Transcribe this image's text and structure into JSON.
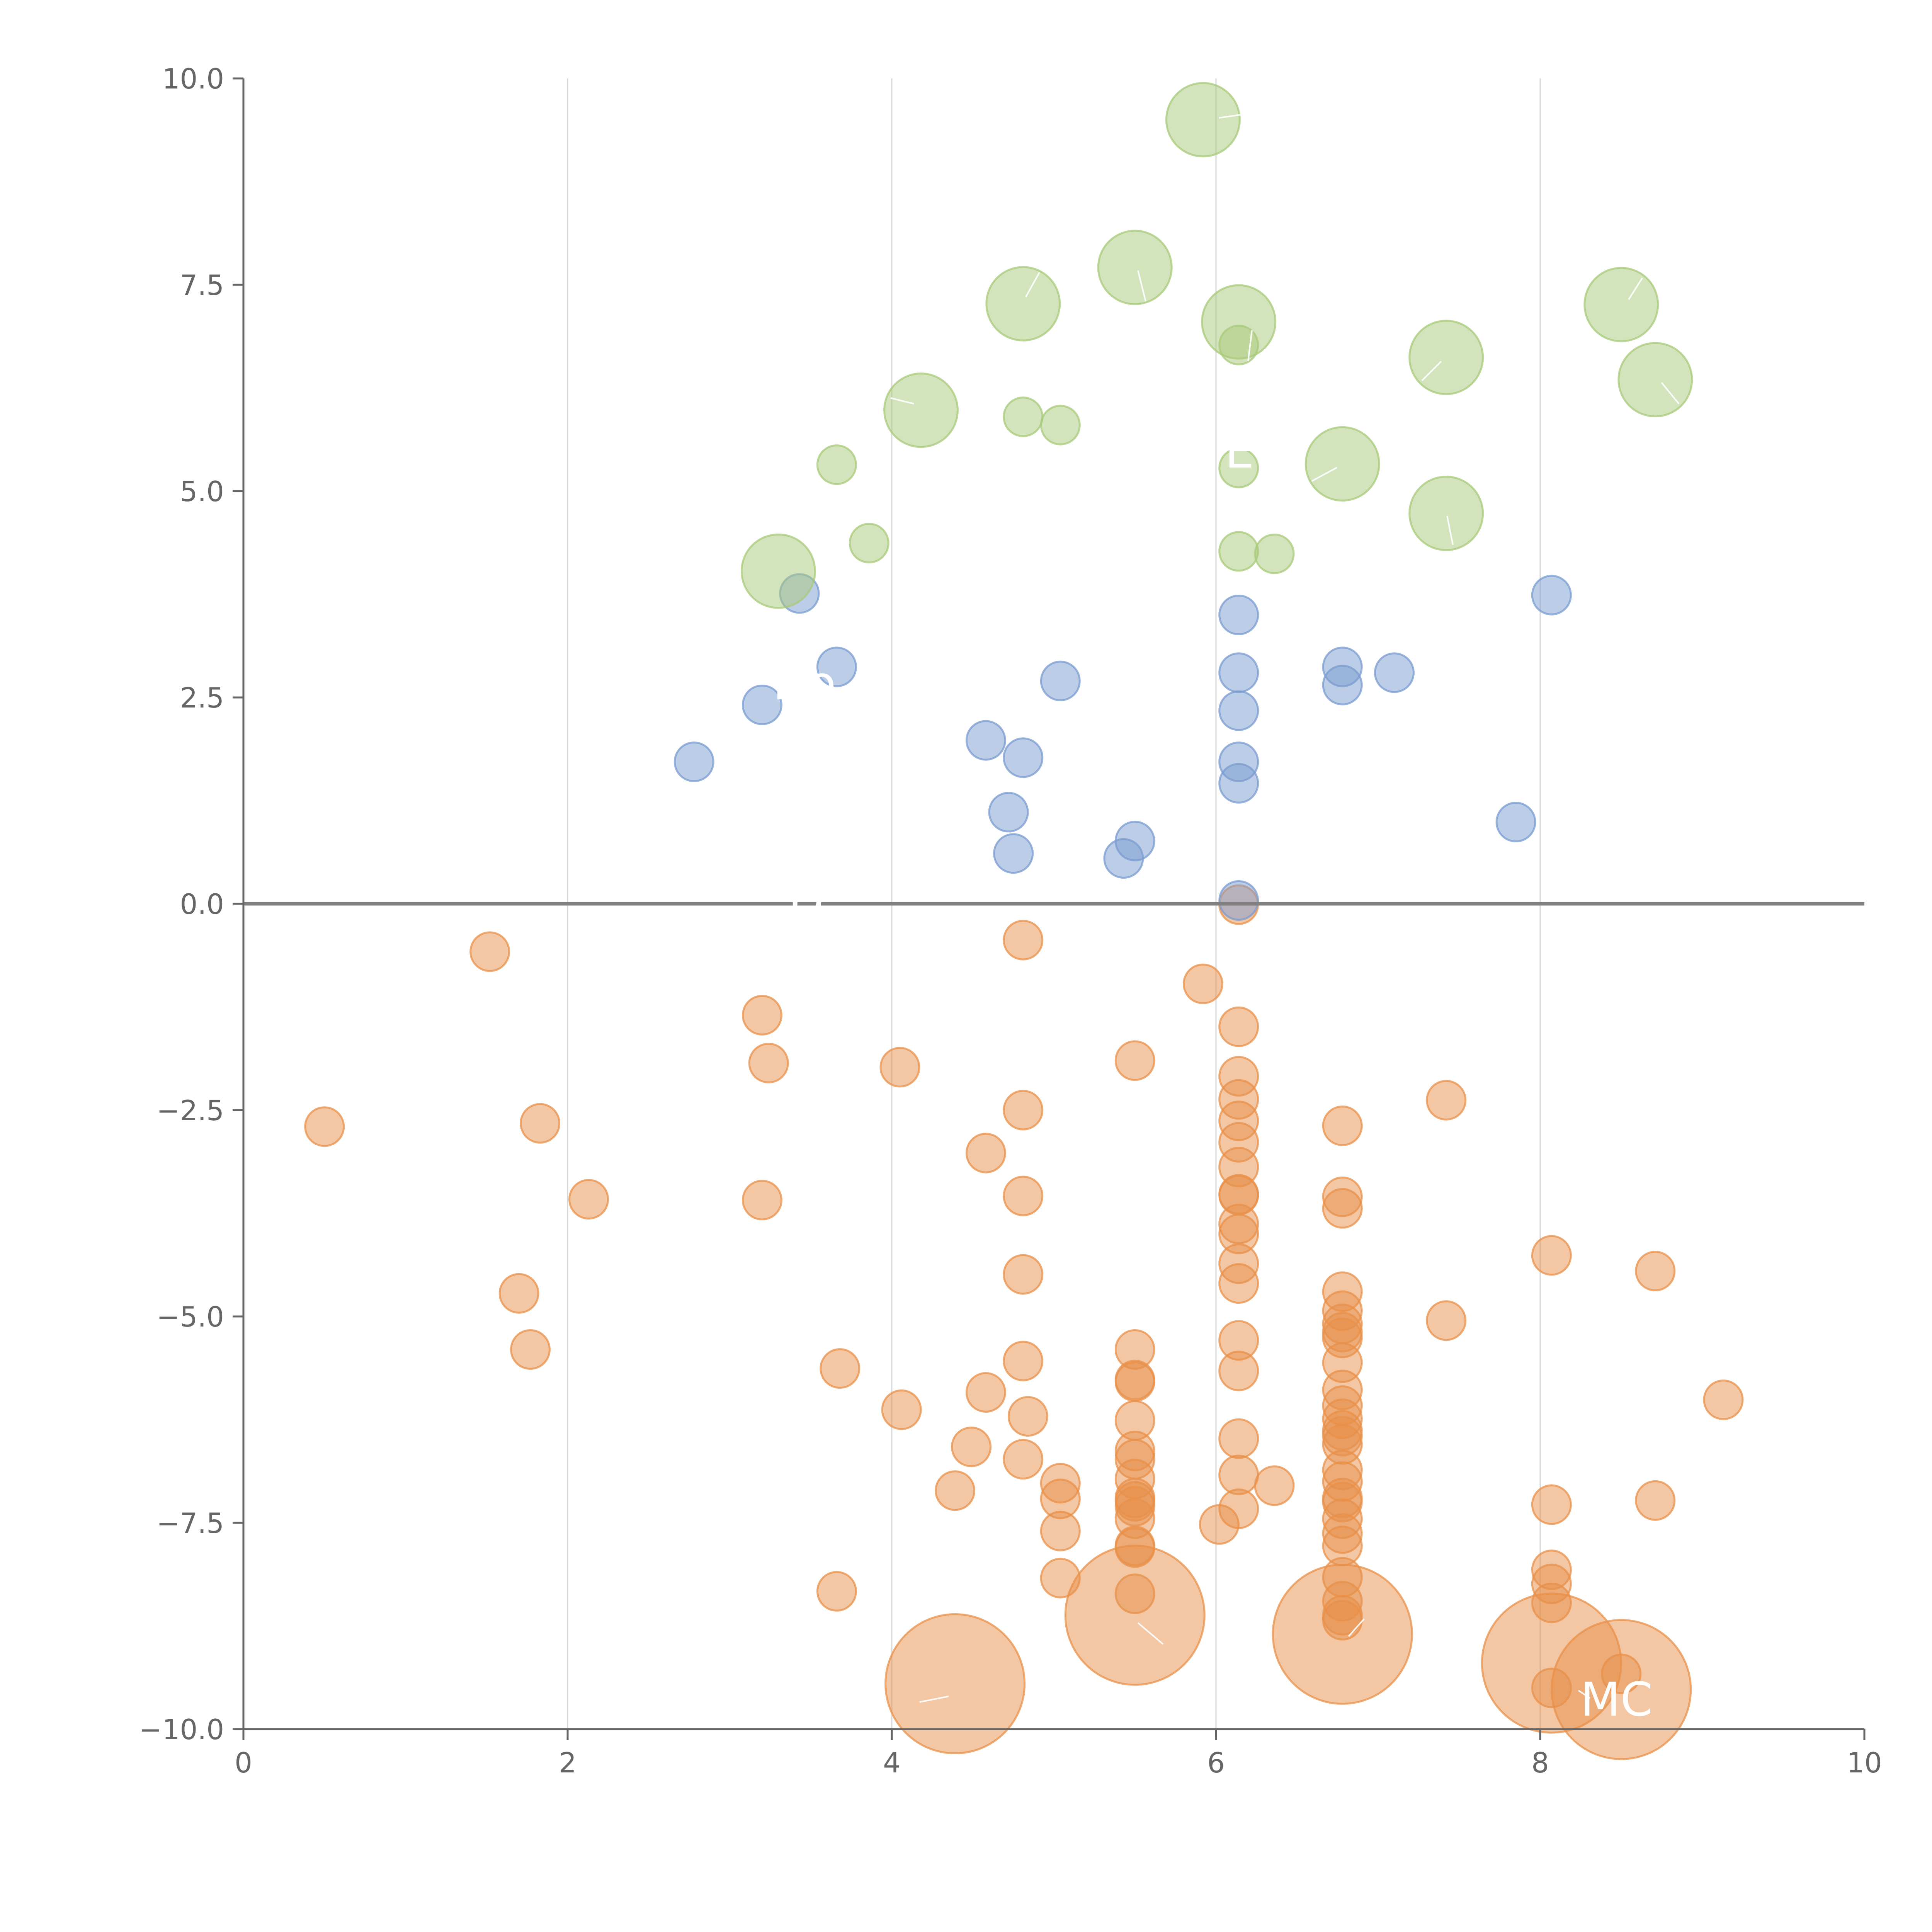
{
  "chart_data": {
    "type": "scatter",
    "title": "",
    "xlabel": "",
    "ylabel": "",
    "xlim": [
      0,
      10
    ],
    "ylim": [
      -10,
      10
    ],
    "x_ticks": [
      0,
      2,
      4,
      6,
      8,
      10
    ],
    "x_tick_labels": [
      "0",
      "2",
      "4",
      "6",
      "8",
      "10"
    ],
    "y_ticks": [
      -10,
      -7.5,
      -5,
      -2.5,
      0,
      2.5,
      5,
      7.5,
      10
    ],
    "y_tick_labels": [
      "−10.0",
      "−7.5",
      "−5.0",
      "−2.5",
      "0.0",
      "2.5",
      "5.0",
      "7.5",
      "10.0"
    ],
    "vertical_gridlines": [
      2,
      4,
      6,
      8
    ],
    "zero_line": 0,
    "series": [
      {
        "name": "orange",
        "color": "#e8904a",
        "size_scale": 1,
        "points": [
          {
            "x": 0.5,
            "y": -2.7
          },
          {
            "x": 1.52,
            "y": -0.58
          },
          {
            "x": 1.7,
            "y": -4.72
          },
          {
            "x": 1.77,
            "y": -5.4
          },
          {
            "x": 1.83,
            "y": -2.66
          },
          {
            "x": 2.13,
            "y": -3.58
          },
          {
            "x": 3.2,
            "y": -1.35
          },
          {
            "x": 3.2,
            "y": -3.59
          },
          {
            "x": 3.24,
            "y": -1.93
          },
          {
            "x": 3.68,
            "y": -5.63
          },
          {
            "x": 3.66,
            "y": -8.33
          },
          {
            "x": 4.05,
            "y": -1.98
          },
          {
            "x": 4.06,
            "y": -6.13
          },
          {
            "x": 4.39,
            "y": -7.11
          },
          {
            "x": 4.49,
            "y": -6.58
          },
          {
            "x": 4.58,
            "y": -5.92
          },
          {
            "x": 4.58,
            "y": -3.02
          },
          {
            "x": 4.81,
            "y": -0.44
          },
          {
            "x": 4.81,
            "y": -2.5
          },
          {
            "x": 4.81,
            "y": -3.54
          },
          {
            "x": 4.81,
            "y": -4.49
          },
          {
            "x": 4.81,
            "y": -5.54
          },
          {
            "x": 4.81,
            "y": -6.73
          },
          {
            "x": 4.84,
            "y": -6.21
          },
          {
            "x": 5.04,
            "y": -7.02
          },
          {
            "x": 5.04,
            "y": -7.21
          },
          {
            "x": 5.04,
            "y": -7.6
          },
          {
            "x": 5.04,
            "y": -8.17
          },
          {
            "x": 5.5,
            "y": -1.9
          },
          {
            "x": 5.5,
            "y": -5.4
          },
          {
            "x": 5.5,
            "y": -5.77
          },
          {
            "x": 5.5,
            "y": -5.79
          },
          {
            "x": 5.5,
            "y": -6.26
          },
          {
            "x": 5.5,
            "y": -6.63
          },
          {
            "x": 5.5,
            "y": -6.73
          },
          {
            "x": 5.5,
            "y": -6.97
          },
          {
            "x": 5.5,
            "y": -7.2
          },
          {
            "x": 5.5,
            "y": -7.24
          },
          {
            "x": 5.5,
            "y": -7.3
          },
          {
            "x": 5.5,
            "y": -7.45
          },
          {
            "x": 5.5,
            "y": -7.78
          },
          {
            "x": 5.5,
            "y": -7.8
          },
          {
            "x": 5.5,
            "y": -8.36
          },
          {
            "x": 5.92,
            "y": -0.97
          },
          {
            "x": 6.02,
            "y": -7.52
          },
          {
            "x": 6.14,
            "y": -0.01
          },
          {
            "x": 6.14,
            "y": -1.49
          },
          {
            "x": 6.14,
            "y": -2.09
          },
          {
            "x": 6.14,
            "y": -2.37
          },
          {
            "x": 6.14,
            "y": -2.63
          },
          {
            "x": 6.14,
            "y": -2.89
          },
          {
            "x": 6.14,
            "y": -3.19
          },
          {
            "x": 6.14,
            "y": -3.52
          },
          {
            "x": 6.14,
            "y": -3.53
          },
          {
            "x": 6.14,
            "y": -3.88
          },
          {
            "x": 6.14,
            "y": -4.0
          },
          {
            "x": 6.14,
            "y": -4.36
          },
          {
            "x": 6.14,
            "y": -4.6
          },
          {
            "x": 6.14,
            "y": -5.29
          },
          {
            "x": 6.14,
            "y": -5.66
          },
          {
            "x": 6.14,
            "y": -6.48
          },
          {
            "x": 6.14,
            "y": -6.92
          },
          {
            "x": 6.14,
            "y": -7.33
          },
          {
            "x": 6.36,
            "y": -7.05
          },
          {
            "x": 6.78,
            "y": -2.69
          },
          {
            "x": 6.78,
            "y": -3.55
          },
          {
            "x": 6.78,
            "y": -3.69
          },
          {
            "x": 6.78,
            "y": -4.7
          },
          {
            "x": 6.78,
            "y": -4.93
          },
          {
            "x": 6.78,
            "y": -5.09
          },
          {
            "x": 6.78,
            "y": -5.19
          },
          {
            "x": 6.78,
            "y": -5.26
          },
          {
            "x": 6.78,
            "y": -5.56
          },
          {
            "x": 6.78,
            "y": -5.89
          },
          {
            "x": 6.78,
            "y": -6.08
          },
          {
            "x": 6.78,
            "y": -6.24
          },
          {
            "x": 6.78,
            "y": -6.38
          },
          {
            "x": 6.78,
            "y": -6.45
          },
          {
            "x": 6.78,
            "y": -6.55
          },
          {
            "x": 6.78,
            "y": -6.86
          },
          {
            "x": 6.78,
            "y": -7.0
          },
          {
            "x": 6.78,
            "y": -7.2
          },
          {
            "x": 6.78,
            "y": -7.25
          },
          {
            "x": 6.78,
            "y": -7.45
          },
          {
            "x": 6.78,
            "y": -7.63
          },
          {
            "x": 6.78,
            "y": -7.78
          },
          {
            "x": 6.78,
            "y": -8.16
          },
          {
            "x": 6.78,
            "y": -8.45
          },
          {
            "x": 6.78,
            "y": -8.62
          },
          {
            "x": 6.78,
            "y": -8.68
          },
          {
            "x": 7.42,
            "y": -2.38
          },
          {
            "x": 7.42,
            "y": -5.05
          },
          {
            "x": 8.07,
            "y": -4.26
          },
          {
            "x": 8.07,
            "y": -7.28
          },
          {
            "x": 8.07,
            "y": -8.07
          },
          {
            "x": 8.07,
            "y": -8.24
          },
          {
            "x": 8.07,
            "y": -8.47
          },
          {
            "x": 8.07,
            "y": -9.5
          },
          {
            "x": 8.5,
            "y": -9.33
          },
          {
            "x": 8.71,
            "y": -4.45
          },
          {
            "x": 8.71,
            "y": -7.23
          },
          {
            "x": 9.13,
            "y": -6.01
          },
          {
            "x": 4.39,
            "y": -9.45,
            "size": 3.6
          },
          {
            "x": 5.5,
            "y": -8.62,
            "size": 3.6
          },
          {
            "x": 6.78,
            "y": -8.85,
            "size": 3.6
          },
          {
            "x": 8.07,
            "y": -9.2,
            "size": 3.6
          },
          {
            "x": 8.5,
            "y": -9.52,
            "size": 3.6
          }
        ]
      },
      {
        "name": "blue",
        "color": "#7a9bcf",
        "size_scale": 1,
        "points": [
          {
            "x": 2.78,
            "y": 1.72
          },
          {
            "x": 3.2,
            "y": 2.41
          },
          {
            "x": 3.43,
            "y": 3.76
          },
          {
            "x": 3.66,
            "y": 2.87
          },
          {
            "x": 4.58,
            "y": 1.98
          },
          {
            "x": 4.72,
            "y": 1.11
          },
          {
            "x": 4.75,
            "y": 0.61
          },
          {
            "x": 4.81,
            "y": 1.77
          },
          {
            "x": 5.04,
            "y": 2.7
          },
          {
            "x": 5.43,
            "y": 0.55
          },
          {
            "x": 5.5,
            "y": 0.76
          },
          {
            "x": 6.14,
            "y": 0.04
          },
          {
            "x": 6.14,
            "y": 1.46
          },
          {
            "x": 6.14,
            "y": 1.72
          },
          {
            "x": 6.14,
            "y": 2.34
          },
          {
            "x": 6.14,
            "y": 2.8
          },
          {
            "x": 6.14,
            "y": 3.5
          },
          {
            "x": 6.78,
            "y": 2.65
          },
          {
            "x": 6.78,
            "y": 2.87
          },
          {
            "x": 7.1,
            "y": 2.8
          },
          {
            "x": 7.85,
            "y": 0.99
          },
          {
            "x": 8.07,
            "y": 3.74
          }
        ]
      },
      {
        "name": "green",
        "color": "#a8c97a",
        "size_scale": 1,
        "points": [
          {
            "x": 3.66,
            "y": 5.32
          },
          {
            "x": 3.86,
            "y": 4.37
          },
          {
            "x": 4.81,
            "y": 5.9
          },
          {
            "x": 5.04,
            "y": 5.8
          },
          {
            "x": 6.14,
            "y": 6.77
          },
          {
            "x": 6.14,
            "y": 5.28
          },
          {
            "x": 6.14,
            "y": 4.27
          },
          {
            "x": 6.36,
            "y": 4.24
          },
          {
            "x": 3.3,
            "y": 4.03,
            "size": 1.9
          },
          {
            "x": 4.18,
            "y": 5.98,
            "size": 1.9
          },
          {
            "x": 4.81,
            "y": 7.27,
            "size": 1.9
          },
          {
            "x": 5.5,
            "y": 7.71,
            "size": 1.9
          },
          {
            "x": 5.92,
            "y": 9.5,
            "size": 1.9
          },
          {
            "x": 6.14,
            "y": 7.05,
            "size": 1.9
          },
          {
            "x": 6.78,
            "y": 5.33,
            "size": 1.9
          },
          {
            "x": 7.42,
            "y": 6.62,
            "size": 1.9
          },
          {
            "x": 7.42,
            "y": 4.73,
            "size": 1.9
          },
          {
            "x": 8.5,
            "y": 7.26,
            "size": 1.9
          },
          {
            "x": 8.71,
            "y": 6.35,
            "size": 1.9
          }
        ]
      }
    ],
    "annotations": [
      "Ho",
      "D",
      "E",
      "MC"
    ]
  }
}
